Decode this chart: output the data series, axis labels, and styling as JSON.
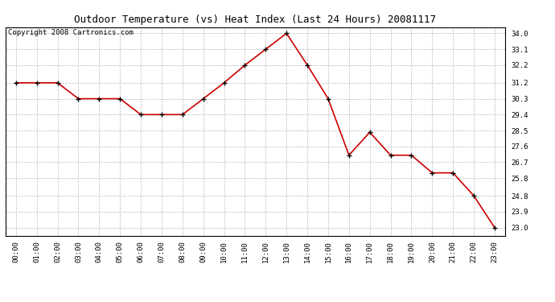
{
  "title": "Outdoor Temperature (vs) Heat Index (Last 24 Hours) 20081117",
  "copyright_text": "Copyright 2008 Cartronics.com",
  "x_labels": [
    "00:00",
    "01:00",
    "02:00",
    "03:00",
    "04:00",
    "05:00",
    "06:00",
    "07:00",
    "08:00",
    "09:00",
    "10:00",
    "11:00",
    "12:00",
    "13:00",
    "14:00",
    "15:00",
    "16:00",
    "17:00",
    "18:00",
    "19:00",
    "20:00",
    "21:00",
    "22:00",
    "23:00"
  ],
  "y_values": [
    31.2,
    31.2,
    31.2,
    30.3,
    30.3,
    30.3,
    29.4,
    29.4,
    29.4,
    30.3,
    31.2,
    32.2,
    33.1,
    34.0,
    32.2,
    30.3,
    27.1,
    28.4,
    27.1,
    27.1,
    26.1,
    26.1,
    24.8,
    23.0
  ],
  "y_ticks": [
    23.0,
    23.9,
    24.8,
    25.8,
    26.7,
    27.6,
    28.5,
    29.4,
    30.3,
    31.2,
    32.2,
    33.1,
    34.0
  ],
  "y_min": 22.55,
  "y_max": 34.35,
  "line_color": "#cc0000",
  "marker_color": "#000000",
  "bg_color": "#ffffff",
  "plot_bg_color": "#ffffff",
  "grid_color": "#bbbbbb",
  "title_fontsize": 9,
  "copyright_fontsize": 6.5,
  "tick_fontsize": 6.5
}
